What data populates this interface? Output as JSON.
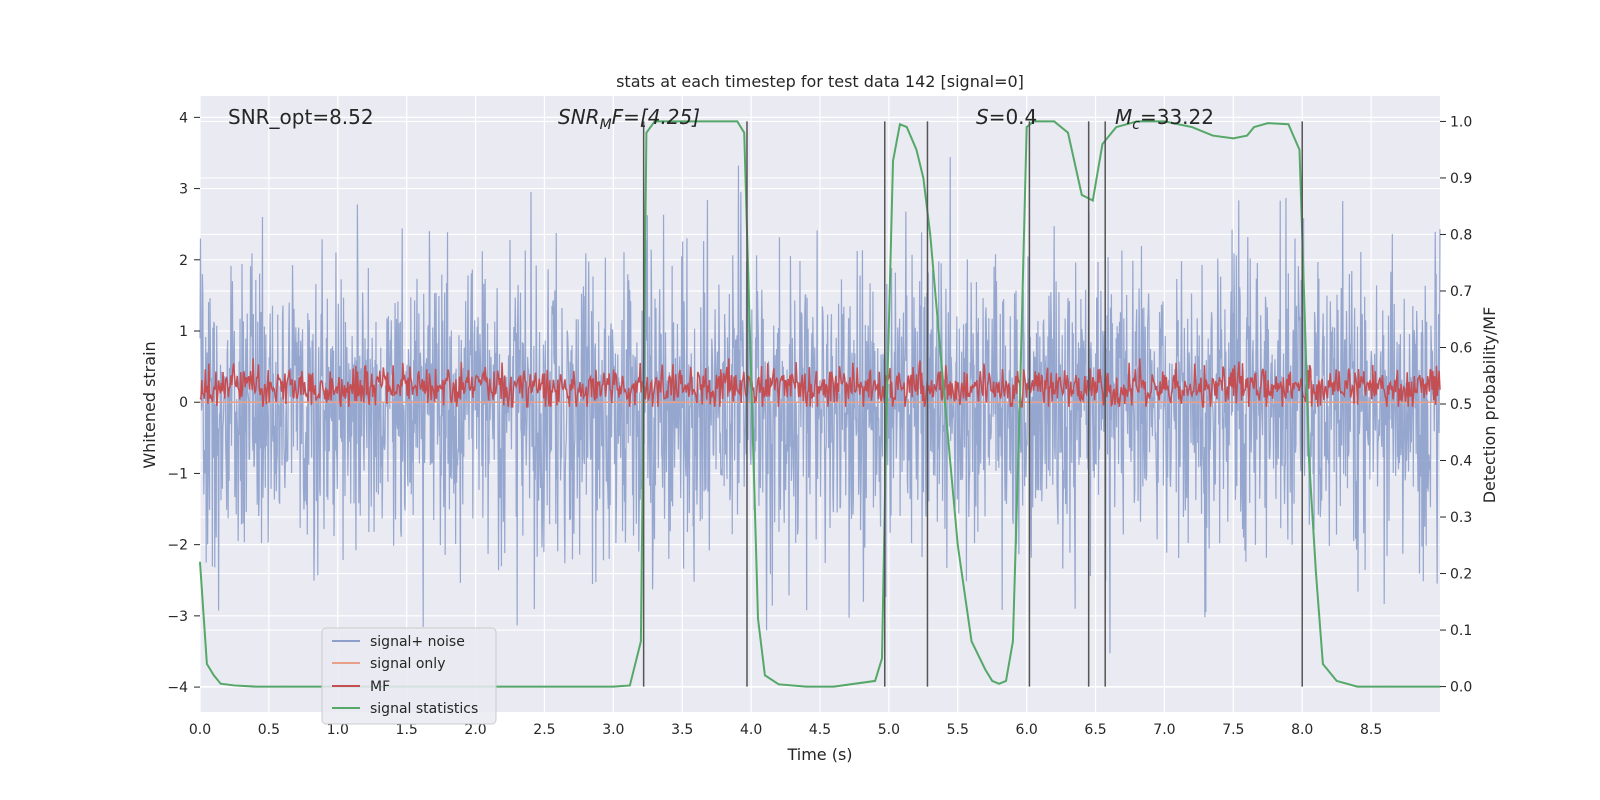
{
  "chart_data": {
    "type": "line",
    "title": "stats at each timestep for test data 142 [signal=0]",
    "xlabel": "Time (s)",
    "ylabel_left": "Whitened strain",
    "ylabel_right": "Detection probability/MF",
    "xlim": [
      0.0,
      9.0
    ],
    "ylim_left": [
      -4.35,
      4.3
    ],
    "ylim_right": [
      -0.045,
      1.045
    ],
    "x_ticks": [
      0.0,
      0.5,
      1.0,
      1.5,
      2.0,
      2.5,
      3.0,
      3.5,
      4.0,
      4.5,
      5.0,
      5.5,
      6.0,
      6.5,
      7.0,
      7.5,
      8.0,
      8.5
    ],
    "x_tick_labels": [
      "0.0",
      "0.5",
      "1.0",
      "1.5",
      "2.0",
      "2.5",
      "3.0",
      "3.5",
      "4.0",
      "4.5",
      "5.0",
      "5.5",
      "6.0",
      "6.5",
      "7.0",
      "7.5",
      "8.0",
      "8.5"
    ],
    "y_left_ticks": [
      -4,
      -3,
      -2,
      -1,
      0,
      1,
      2,
      3,
      4
    ],
    "y_left_tick_labels": [
      "−4",
      "−3",
      "−2",
      "−1",
      "0",
      "1",
      "2",
      "3",
      "4"
    ],
    "y_right_ticks": [
      0.0,
      0.1,
      0.2,
      0.3,
      0.4,
      0.5,
      0.6,
      0.7,
      0.8,
      0.9,
      1.0
    ],
    "y_right_tick_labels": [
      "0.0",
      "0.1",
      "0.2",
      "0.3",
      "0.4",
      "0.5",
      "0.6",
      "0.7",
      "0.8",
      "0.9",
      "1.0"
    ],
    "annotations": {
      "snr_opt": "SNR_opt=8.52",
      "snr_mf_main": "SNR",
      "snr_mf_sub": "M",
      "snr_mf_tail": "F=[4.25]",
      "s_main": "S",
      "s_tail": "=0.4",
      "mc_main": "M",
      "mc_sub": "c",
      "mc_tail": "=33.22"
    },
    "series": [
      {
        "name": "signal+ noise",
        "axis": "left",
        "color": "#8da0cb",
        "description": "dense whitened strain noise, roughly within -3.9 to 3.9"
      },
      {
        "name": "signal only",
        "axis": "left",
        "color": "#e8a08a",
        "values": "zero"
      },
      {
        "name": "MF",
        "axis": "right",
        "color": "#c44e52",
        "description": "matched filter output, noisy around 0.53, range ~0.5-0.6"
      },
      {
        "name": "signal statistics",
        "axis": "right",
        "color": "#55a868",
        "x": [
          0.0,
          0.05,
          0.1,
          0.15,
          0.25,
          0.4,
          0.6,
          1.0,
          2.0,
          3.0,
          3.12,
          3.2,
          3.24,
          3.3,
          3.4,
          3.9,
          3.95,
          4.0,
          4.05,
          4.1,
          4.2,
          4.4,
          4.6,
          4.9,
          4.95,
          4.98,
          5.03,
          5.08,
          5.13,
          5.2,
          5.25,
          5.3,
          5.4,
          5.5,
          5.6,
          5.7,
          5.75,
          5.8,
          5.85,
          5.9,
          5.95,
          6.0,
          6.05,
          6.1,
          6.2,
          6.3,
          6.4,
          6.48,
          6.55,
          6.65,
          6.8,
          7.0,
          7.2,
          7.35,
          7.5,
          7.6,
          7.65,
          7.75,
          7.9,
          7.98,
          8.0,
          8.05,
          8.1,
          8.15,
          8.25,
          8.4,
          8.6,
          9.0
        ],
        "values": [
          0.22,
          0.04,
          0.02,
          0.005,
          0.002,
          0.0,
          0.0,
          0.0,
          0.0,
          0.0,
          0.002,
          0.08,
          0.98,
          1.0,
          1.0,
          1.0,
          0.98,
          0.55,
          0.12,
          0.02,
          0.004,
          0.0,
          0.0,
          0.01,
          0.05,
          0.45,
          0.93,
          0.995,
          0.99,
          0.95,
          0.9,
          0.8,
          0.52,
          0.25,
          0.08,
          0.03,
          0.01,
          0.005,
          0.01,
          0.08,
          0.5,
          0.99,
          1.0,
          1.0,
          1.0,
          0.98,
          0.87,
          0.86,
          0.96,
          0.99,
          1.0,
          1.0,
          0.99,
          0.975,
          0.97,
          0.975,
          0.99,
          0.997,
          0.995,
          0.95,
          0.8,
          0.4,
          0.2,
          0.04,
          0.01,
          0.0,
          0.0,
          0.0
        ]
      }
    ],
    "vertical_lines": [
      3.22,
      3.97,
      4.97,
      5.28,
      6.02,
      6.45,
      6.57,
      8.0
    ],
    "grid": true,
    "legend_location": "lower-left"
  }
}
